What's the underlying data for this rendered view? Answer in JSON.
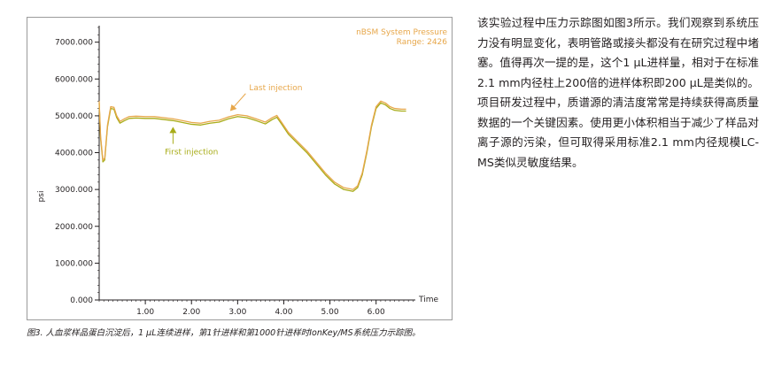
{
  "chart_data": {
    "type": "line",
    "title": "nBSM System Pressure",
    "subtitle": "Range: 2426",
    "xlabel": "Time",
    "ylabel": "psi",
    "xlim": [
      0.0,
      6.85
    ],
    "ylim": [
      0,
      7400
    ],
    "xticks": [
      1.0,
      2.0,
      3.0,
      4.0,
      5.0,
      6.0
    ],
    "xtick_labels": [
      "1.00",
      "2.00",
      "3.00",
      "4.00",
      "5.00",
      "6.00"
    ],
    "yticks": [
      0,
      1000,
      2000,
      3000,
      4000,
      5000,
      6000,
      7000
    ],
    "ytick_labels": [
      "0.000",
      "1000.000",
      "2000.000",
      "3000.000",
      "4000.000",
      "5000.000",
      "6000.000",
      "7000.000"
    ],
    "grid": false,
    "series": [
      {
        "name": "First injection",
        "color": "#a8ac18",
        "x": [
          0.0,
          0.03,
          0.08,
          0.12,
          0.18,
          0.25,
          0.32,
          0.38,
          0.45,
          0.55,
          0.65,
          0.8,
          1.0,
          1.2,
          1.4,
          1.6,
          1.8,
          2.0,
          2.2,
          2.4,
          2.6,
          2.8,
          3.0,
          3.2,
          3.4,
          3.6,
          3.75,
          3.85,
          3.95,
          4.1,
          4.3,
          4.5,
          4.7,
          4.9,
          5.1,
          5.3,
          5.5,
          5.6,
          5.7,
          5.8,
          5.9,
          6.0,
          6.1,
          6.2,
          6.3,
          6.4,
          6.55,
          6.65
        ],
        "y": [
          5350,
          4400,
          3750,
          3800,
          4700,
          5200,
          5180,
          4950,
          4800,
          4870,
          4930,
          4940,
          4930,
          4930,
          4900,
          4870,
          4820,
          4770,
          4750,
          4800,
          4830,
          4920,
          4980,
          4950,
          4870,
          4780,
          4900,
          4960,
          4780,
          4500,
          4250,
          4000,
          3700,
          3400,
          3150,
          3000,
          2950,
          3050,
          3400,
          4000,
          4700,
          5200,
          5350,
          5300,
          5200,
          5150,
          5130,
          5130
        ]
      },
      {
        "name": "Last injection",
        "color": "#e7a74a",
        "x": [
          0.0,
          0.03,
          0.08,
          0.12,
          0.18,
          0.25,
          0.32,
          0.38,
          0.45,
          0.55,
          0.65,
          0.8,
          1.0,
          1.2,
          1.4,
          1.6,
          1.8,
          2.0,
          2.2,
          2.4,
          2.6,
          2.8,
          3.0,
          3.2,
          3.4,
          3.6,
          3.75,
          3.85,
          3.95,
          4.1,
          4.3,
          4.5,
          4.7,
          4.9,
          5.1,
          5.3,
          5.5,
          5.6,
          5.7,
          5.8,
          5.9,
          6.0,
          6.1,
          6.2,
          6.3,
          6.4,
          6.55,
          6.65
        ],
        "y": [
          5400,
          4450,
          3800,
          3850,
          4750,
          5250,
          5230,
          5000,
          4850,
          4920,
          4980,
          4990,
          4980,
          4980,
          4950,
          4920,
          4870,
          4820,
          4800,
          4850,
          4880,
          4970,
          5030,
          5000,
          4920,
          4830,
          4950,
          5010,
          4830,
          4550,
          4300,
          4050,
          3750,
          3450,
          3200,
          3050,
          3000,
          3100,
          3450,
          4050,
          4750,
          5250,
          5400,
          5350,
          5250,
          5200,
          5180,
          5180
        ]
      }
    ],
    "annotations": [
      {
        "text": "Last injection",
        "color": "#e7a74a",
        "arrow_to": [
          2.85,
          5050
        ],
        "text_at": [
          3.25,
          5700
        ]
      },
      {
        "text": "First injection",
        "color": "#a8ac18",
        "arrow_to": [
          1.6,
          4820
        ],
        "text_at": [
          2.0,
          3950
        ]
      }
    ]
  },
  "caption": "图3. 人血浆样品蛋白沉淀后，1 µL连续进样，第1针进样和第1000针进样时IonKey/MS系统压力示踪图。",
  "body_text": "该实验过程中压力示踪图如图3所示。我们观察到系统压力没有明显变化，表明管路或接头都没有在研究过程中堵塞。值得再次一提的是，这个1 µL进样量，相对于在标准2.1 mm内径柱上200倍的进样体积即200 µL是类似的。项目研发过程中，质谱源的清洁度常常是持续获得高质量数据的一个关键因素。使用更小体积相当于减少了样品对离子源的污染，但可取得采用标准2.1 mm内径规模LC-MS类似灵敏度结果。",
  "colors": {
    "frame": "#9b9b9b",
    "title_text": "#e7a74a",
    "first_injection": "#a8ac18",
    "last_injection": "#e7a74a"
  }
}
